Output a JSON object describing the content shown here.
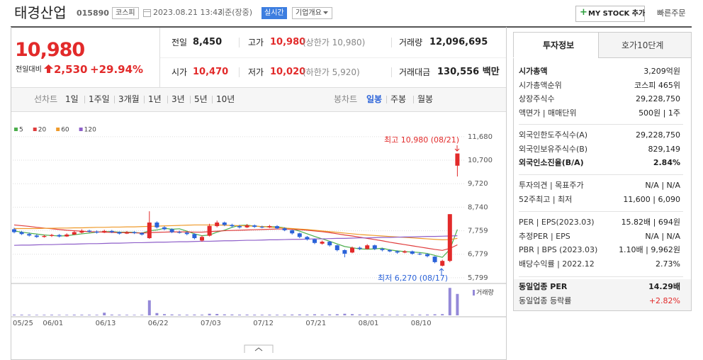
{
  "header": {
    "name": "태경산업",
    "code": "015890",
    "market": "코스피",
    "datetime": "2023.08.21 13:43",
    "basis": "기준(장중)",
    "realtime": "실시간",
    "overview": "기업개요",
    "mystock": "MY STOCK 추가",
    "quick_order": "빠른주문"
  },
  "price": {
    "current": "10,980",
    "change_label": "전일대비",
    "change": "2,530",
    "rate": "+29.94%"
  },
  "summary": [
    {
      "label": "전일",
      "value": "8,450"
    },
    {
      "label": "고가",
      "value": "10,980",
      "note": "(상한가 10,980)"
    },
    {
      "label": "거래량",
      "value": "12,096,695"
    },
    {
      "label": "시가",
      "value": "10,470"
    },
    {
      "label": "저가",
      "value": "10,020",
      "note": "(하한가 5,920)"
    },
    {
      "label": "거래대금",
      "value": "130,556 백만"
    }
  ],
  "line_chart_tabs": [
    "선차트",
    "1일",
    "1주일",
    "3개월",
    "1년",
    "3년",
    "5년",
    "10년"
  ],
  "candle_chart_tabs": [
    "봉차트",
    "일봉",
    "주봉",
    "월봉"
  ],
  "chart_data": {
    "type": "candlestick",
    "categories": [
      "05/25",
      null,
      null,
      null,
      "06/01",
      null,
      null,
      null,
      null,
      null,
      null,
      "06/13",
      null,
      null,
      null,
      null,
      null,
      null,
      "06/22",
      null,
      null,
      null,
      null,
      null,
      null,
      "07/03",
      null,
      null,
      null,
      null,
      null,
      null,
      "07/12",
      null,
      null,
      null,
      null,
      null,
      null,
      "07/21",
      null,
      null,
      null,
      null,
      null,
      null,
      "08/01",
      null,
      null,
      null,
      null,
      null,
      null,
      "08/10",
      null,
      null,
      null,
      null,
      null,
      null
    ],
    "open": [
      7820,
      7700,
      7620,
      7560,
      7500,
      7540,
      7580,
      7520,
      7600,
      7680,
      7760,
      7720,
      7680,
      7750,
      7700,
      7640,
      7700,
      7660,
      7450,
      8100,
      7900,
      7820,
      7700,
      7680,
      7620,
      7350,
      7550,
      7950,
      8100,
      8000,
      7950,
      7900,
      7980,
      7920,
      7900,
      7950,
      7860,
      7780,
      7650,
      7500,
      7400,
      7220,
      7300,
      7150,
      6950,
      6850,
      7050,
      7000,
      7150,
      7000,
      6950,
      6900,
      6850,
      6900,
      6800,
      6780,
      6680,
      6300,
      6500,
      10470
    ],
    "high": [
      7880,
      7750,
      7680,
      7610,
      7590,
      7630,
      7620,
      7650,
      7760,
      7820,
      7800,
      7770,
      7800,
      7790,
      7730,
      7750,
      7740,
      7700,
      8570,
      8150,
      7950,
      7860,
      7760,
      7720,
      7650,
      7560,
      8050,
      8180,
      8140,
      8050,
      8000,
      8040,
      8020,
      7970,
      8000,
      7990,
      7900,
      7800,
      7680,
      7540,
      7430,
      7350,
      7330,
      7180,
      6980,
      7100,
      7100,
      7200,
      7180,
      7050,
      6990,
      6940,
      6950,
      6930,
      6850,
      6820,
      6700,
      6550,
      8450,
      10980
    ],
    "low": [
      7650,
      7580,
      7520,
      7460,
      7470,
      7500,
      7480,
      7500,
      7580,
      7650,
      7680,
      7640,
      7660,
      7660,
      7600,
      7620,
      7620,
      7560,
      7420,
      7850,
      7780,
      7660,
      7640,
      7570,
      7400,
      7300,
      7520,
      7900,
      7950,
      7900,
      7850,
      7870,
      7880,
      7860,
      7870,
      7820,
      7740,
      7600,
      7450,
      7350,
      7200,
      7180,
      7100,
      6900,
      6650,
      6820,
      6950,
      6980,
      6950,
      6900,
      6860,
      6800,
      6820,
      6760,
      6740,
      6650,
      6400,
      6270,
      6450,
      10020
    ],
    "close": [
      7700,
      7620,
      7560,
      7500,
      7540,
      7580,
      7520,
      7600,
      7700,
      7760,
      7720,
      7680,
      7750,
      7700,
      7640,
      7700,
      7660,
      7600,
      8100,
      7900,
      7820,
      7700,
      7680,
      7620,
      7450,
      7500,
      7960,
      8100,
      8000,
      7950,
      7900,
      7980,
      7920,
      7900,
      7950,
      7860,
      7780,
      7650,
      7500,
      7400,
      7250,
      7300,
      7150,
      6950,
      6800,
      7050,
      7000,
      7150,
      7000,
      6950,
      6900,
      6850,
      6900,
      6800,
      6780,
      6700,
      6450,
      6500,
      8450,
      10980
    ],
    "up_color": "#e22a2a",
    "down_color": "#2b63d9",
    "series": [
      {
        "name": "5",
        "color": "#4cae4c",
        "values": [
          7750,
          7700,
          7660,
          7620,
          7580,
          7560,
          7540,
          7550,
          7590,
          7630,
          7660,
          7700,
          7720,
          7720,
          7700,
          7700,
          7690,
          7660,
          7760,
          7790,
          7860,
          7820,
          7840,
          7740,
          7630,
          7550,
          7580,
          7700,
          7780,
          7900,
          7980,
          7990,
          7950,
          7930,
          7930,
          7920,
          7880,
          7830,
          7740,
          7630,
          7520,
          7420,
          7320,
          7210,
          7100,
          7050,
          7000,
          6990,
          7000,
          7030,
          6960,
          6920,
          6890,
          6870,
          6850,
          6810,
          6730,
          6650,
          6980,
          7810
        ]
      },
      {
        "name": "20",
        "color": "#e03c3c",
        "values": [
          8000,
          7970,
          7940,
          7900,
          7870,
          7840,
          7810,
          7780,
          7760,
          7740,
          7720,
          7710,
          7700,
          7690,
          7680,
          7680,
          7670,
          7660,
          7680,
          7690,
          7700,
          7710,
          7710,
          7710,
          7700,
          7700,
          7720,
          7740,
          7760,
          7770,
          7780,
          7790,
          7800,
          7810,
          7820,
          7830,
          7830,
          7820,
          7800,
          7780,
          7750,
          7720,
          7680,
          7630,
          7580,
          7540,
          7490,
          7440,
          7390,
          7340,
          7280,
          7230,
          7180,
          7130,
          7080,
          7030,
          6980,
          6940,
          7020,
          7170
        ]
      },
      {
        "name": "60",
        "color": "#ef9a2a",
        "values": [
          7850,
          7850,
          7850,
          7850,
          7860,
          7860,
          7870,
          7870,
          7880,
          7880,
          7890,
          7900,
          7900,
          7910,
          7910,
          7920,
          7920,
          7930,
          7940,
          7950,
          7960,
          7970,
          7980,
          7990,
          8000,
          8000,
          8000,
          8000,
          7990,
          7980,
          7970,
          7960,
          7950,
          7930,
          7910,
          7890,
          7870,
          7850,
          7830,
          7810,
          7780,
          7750,
          7720,
          7690,
          7660,
          7630,
          7600,
          7580,
          7560,
          7540,
          7520,
          7500,
          7480,
          7460,
          7440,
          7420,
          7400,
          7380,
          7390,
          7440
        ]
      },
      {
        "name": "120",
        "color": "#8e5fc9",
        "values": [
          7150,
          7160,
          7160,
          7170,
          7180,
          7180,
          7190,
          7200,
          7200,
          7210,
          7220,
          7220,
          7230,
          7240,
          7240,
          7250,
          7260,
          7260,
          7270,
          7280,
          7280,
          7290,
          7300,
          7300,
          7310,
          7320,
          7320,
          7330,
          7340,
          7340,
          7350,
          7360,
          7360,
          7370,
          7380,
          7380,
          7390,
          7400,
          7400,
          7410,
          7420,
          7420,
          7430,
          7440,
          7440,
          7450,
          7460,
          7460,
          7470,
          7480,
          7480,
          7490,
          7500,
          7500,
          7510,
          7520,
          7520,
          7530,
          7540,
          7550
        ]
      }
    ],
    "ylim": [
      5560,
      12060
    ],
    "yticks": [
      {
        "value": 11680,
        "label": "11,680"
      },
      {
        "value": 10700,
        "label": "10,700"
      },
      {
        "value": 9720,
        "label": "9,720"
      },
      {
        "value": 8740,
        "label": "8,740"
      },
      {
        "value": 7759,
        "label": "7,759"
      },
      {
        "value": 6779,
        "label": "6,779"
      },
      {
        "value": 5799,
        "label": "5,799"
      }
    ],
    "grid": true,
    "annotations": [
      {
        "text": "최고 10,980 (08/21)",
        "color": "#e22a2a"
      },
      {
        "text": "최저 6,270 (08/17)",
        "color": "#2b63d9"
      }
    ],
    "volume": {
      "name": "거래량",
      "color": "#9489d8",
      "ylim": [
        0,
        16000000
      ],
      "values": [
        420000,
        380000,
        350000,
        300000,
        330000,
        360000,
        310000,
        290000,
        400000,
        380000,
        350000,
        330000,
        1500000,
        420000,
        380000,
        330000,
        300000,
        350000,
        8500000,
        1300000,
        700000,
        500000,
        420000,
        380000,
        450000,
        400000,
        900000,
        800000,
        550000,
        480000,
        420000,
        450000,
        400000,
        380000,
        410000,
        370000,
        400000,
        450000,
        520000,
        480000,
        600000,
        450000,
        520000,
        650000,
        900000,
        700000,
        500000,
        480000,
        420000,
        400000,
        380000,
        360000,
        400000,
        380000,
        420000,
        450000,
        600000,
        700000,
        15500000,
        12096695
      ]
    }
  },
  "invest_info": {
    "tabs": [
      "투자정보",
      "호가10단계"
    ],
    "groups": [
      [
        {
          "label": "시가총액",
          "value": "3,209억원"
        },
        {
          "label": "시가총액순위",
          "value": "코스피 465위"
        },
        {
          "label": "상장주식수",
          "value": "29,228,750"
        },
        {
          "label": "액면가 | 매매단위",
          "value": "500원 | 1주"
        }
      ],
      [
        {
          "label": "외국인한도주식수(A)",
          "value": "29,228,750"
        },
        {
          "label": "외국인보유주식수(B)",
          "value": "829,149"
        },
        {
          "label": "외국인소진율(B/A)",
          "value": "2.84%"
        }
      ],
      [
        {
          "label": "투자의견 | 목표주가",
          "value": "N/A | N/A"
        },
        {
          "label": "52주최고 | 최저",
          "value": "11,600 | 6,090"
        }
      ],
      [
        {
          "label": "PER | EPS(2023.03)",
          "value": "15.82배 | 694원"
        },
        {
          "label": "추정PER | EPS",
          "value": "N/A | N/A"
        },
        {
          "label": "PBR | BPS (2023.03)",
          "value": "1.10배 | 9,962원"
        },
        {
          "label": "배당수익률 | 2022.12",
          "value": "2.73%"
        }
      ],
      [
        {
          "label": "동일업종 PER",
          "value": "14.29배"
        },
        {
          "label": "동일업종 등락률",
          "value": "+2.82%"
        }
      ]
    ]
  }
}
